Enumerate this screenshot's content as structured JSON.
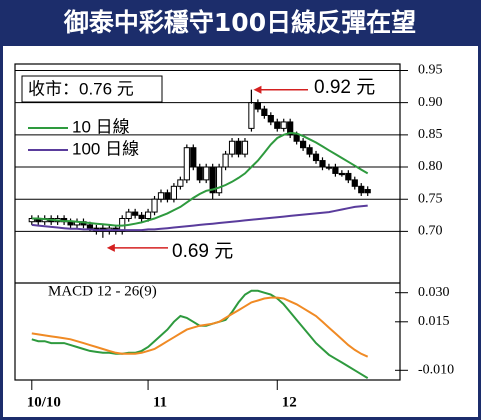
{
  "title": "御泰中彩穩守100日線反彈在望",
  "chart_data": [
    {
      "type": "candlestick",
      "close_note": "收市：0.76 元",
      "high_note": "0.92 元",
      "low_note": "0.69 元",
      "up_color": "#ffffff",
      "down_color": "#000000",
      "open": [
        0.715,
        0.72,
        0.715,
        0.72,
        0.715,
        0.72,
        0.715,
        0.71,
        0.715,
        0.71,
        0.705,
        0.705,
        0.7,
        0.705,
        0.7,
        0.72,
        0.73,
        0.725,
        0.72,
        0.73,
        0.75,
        0.76,
        0.75,
        0.77,
        0.78,
        0.83,
        0.8,
        0.78,
        0.8,
        0.76,
        0.8,
        0.82,
        0.84,
        0.82,
        0.86,
        0.9,
        0.89,
        0.88,
        0.87,
        0.86,
        0.87,
        0.85,
        0.84,
        0.83,
        0.82,
        0.81,
        0.8,
        0.8,
        0.79,
        0.79,
        0.78,
        0.77,
        0.765
      ],
      "high": [
        0.725,
        0.725,
        0.725,
        0.725,
        0.725,
        0.725,
        0.72,
        0.72,
        0.72,
        0.715,
        0.71,
        0.71,
        0.71,
        0.71,
        0.725,
        0.735,
        0.735,
        0.73,
        0.735,
        0.755,
        0.765,
        0.765,
        0.775,
        0.785,
        0.835,
        0.835,
        0.805,
        0.805,
        0.805,
        0.805,
        0.825,
        0.845,
        0.845,
        0.845,
        0.92,
        0.905,
        0.895,
        0.885,
        0.875,
        0.875,
        0.875,
        0.855,
        0.845,
        0.835,
        0.825,
        0.815,
        0.805,
        0.805,
        0.795,
        0.795,
        0.785,
        0.775,
        0.77
      ],
      "low": [
        0.71,
        0.71,
        0.71,
        0.71,
        0.71,
        0.71,
        0.705,
        0.705,
        0.705,
        0.7,
        0.695,
        0.69,
        0.695,
        0.695,
        0.695,
        0.715,
        0.72,
        0.715,
        0.715,
        0.725,
        0.745,
        0.745,
        0.745,
        0.765,
        0.775,
        0.795,
        0.775,
        0.775,
        0.75,
        0.755,
        0.795,
        0.815,
        0.815,
        0.815,
        0.855,
        0.885,
        0.875,
        0.865,
        0.855,
        0.855,
        0.845,
        0.835,
        0.825,
        0.815,
        0.805,
        0.795,
        0.795,
        0.785,
        0.785,
        0.775,
        0.765,
        0.755,
        0.755
      ],
      "close": [
        0.72,
        0.715,
        0.72,
        0.715,
        0.72,
        0.715,
        0.71,
        0.715,
        0.71,
        0.705,
        0.7,
        0.7,
        0.705,
        0.7,
        0.72,
        0.73,
        0.725,
        0.72,
        0.73,
        0.75,
        0.76,
        0.75,
        0.77,
        0.78,
        0.83,
        0.8,
        0.78,
        0.8,
        0.76,
        0.8,
        0.82,
        0.84,
        0.82,
        0.84,
        0.9,
        0.89,
        0.88,
        0.87,
        0.86,
        0.87,
        0.85,
        0.84,
        0.83,
        0.82,
        0.81,
        0.8,
        0.8,
        0.79,
        0.79,
        0.78,
        0.77,
        0.76,
        0.76
      ],
      "series": [
        {
          "name": "10 日線",
          "color": "#2e9a3e",
          "values": [
            0.72,
            0.72,
            0.719,
            0.718,
            0.717,
            0.716,
            0.716,
            0.715,
            0.714,
            0.713,
            0.712,
            0.711,
            0.71,
            0.709,
            0.709,
            0.71,
            0.712,
            0.714,
            0.717,
            0.72,
            0.724,
            0.728,
            0.733,
            0.738,
            0.745,
            0.752,
            0.758,
            0.763,
            0.765,
            0.768,
            0.772,
            0.777,
            0.783,
            0.79,
            0.8,
            0.81,
            0.822,
            0.835,
            0.845,
            0.85,
            0.853,
            0.852,
            0.848,
            0.843,
            0.838,
            0.832,
            0.826,
            0.82,
            0.814,
            0.808,
            0.802,
            0.796,
            0.79
          ]
        },
        {
          "name": "100 日線",
          "color": "#5a3c9c",
          "values": [
            0.71,
            0.709,
            0.708,
            0.707,
            0.706,
            0.705,
            0.704,
            0.704,
            0.703,
            0.703,
            0.702,
            0.702,
            0.702,
            0.702,
            0.702,
            0.702,
            0.702,
            0.702,
            0.703,
            0.703,
            0.704,
            0.705,
            0.706,
            0.707,
            0.708,
            0.709,
            0.71,
            0.711,
            0.712,
            0.713,
            0.714,
            0.715,
            0.716,
            0.717,
            0.718,
            0.719,
            0.72,
            0.721,
            0.722,
            0.723,
            0.724,
            0.725,
            0.726,
            0.727,
            0.728,
            0.729,
            0.73,
            0.732,
            0.734,
            0.736,
            0.738,
            0.739,
            0.74
          ]
        }
      ],
      "ylim": [
        0.64,
        0.96
      ],
      "yticks": [
        0.95,
        {
          "value": 0.9,
          "label": "0.90"
        },
        0.85,
        {
          "value": 0.8,
          "label": "0.80"
        },
        0.75,
        {
          "value": 0.7,
          "label": "0.70"
        }
      ],
      "xlim": [
        -2.6,
        57
      ],
      "xticks": [
        {
          "value": 0,
          "label": "10/10"
        },
        {
          "value": 18,
          "label": "11"
        },
        {
          "value": 38,
          "label": "12"
        }
      ]
    },
    {
      "type": "line",
      "title": "MACD 12 - 26(9)",
      "series": [
        {
          "color": "#2e9a3e",
          "values": [
            0.006,
            0.005,
            0.005,
            0.004,
            0.004,
            0.004,
            0.003,
            0.002,
            0.001,
            0,
            -0.0005,
            -0.001,
            -0.001,
            -0.0015,
            -0.0015,
            -0.001,
            -0.001,
            0,
            0.002,
            0.005,
            0.008,
            0.011,
            0.015,
            0.018,
            0.017,
            0.015,
            0.013,
            0.013,
            0.014,
            0.015,
            0.016,
            0.02,
            0.025,
            0.029,
            0.031,
            0.031,
            0.03,
            0.029,
            0.027,
            0.024,
            0.02,
            0.016,
            0.012,
            0.008,
            0.004,
            0.001,
            -0.002,
            -0.004,
            -0.006,
            -0.008,
            -0.01,
            -0.012,
            -0.014
          ]
        },
        {
          "color": "#f08a24",
          "values": [
            0.009,
            0.0085,
            0.008,
            0.0075,
            0.007,
            0.0065,
            0.006,
            0.005,
            0.004,
            0.003,
            0.002,
            0.001,
            0,
            -0.001,
            -0.0015,
            -0.0015,
            -0.0015,
            -0.001,
            0,
            0.001,
            0.003,
            0.005,
            0.007,
            0.009,
            0.011,
            0.012,
            0.013,
            0.0135,
            0.014,
            0.015,
            0.017,
            0.019,
            0.021,
            0.023,
            0.025,
            0.026,
            0.027,
            0.0275,
            0.0275,
            0.027,
            0.0255,
            0.024,
            0.022,
            0.02,
            0.018,
            0.015,
            0.012,
            0.009,
            0.006,
            0.003,
            0.0005,
            -0.0015,
            -0.003
          ]
        }
      ],
      "ylim": [
        -0.015,
        0.035
      ],
      "yticks": [
        {
          "value": 0.03,
          "label": "0.030"
        },
        0.015,
        {
          "value": -0.01,
          "label": "-0.010"
        }
      ]
    }
  ]
}
